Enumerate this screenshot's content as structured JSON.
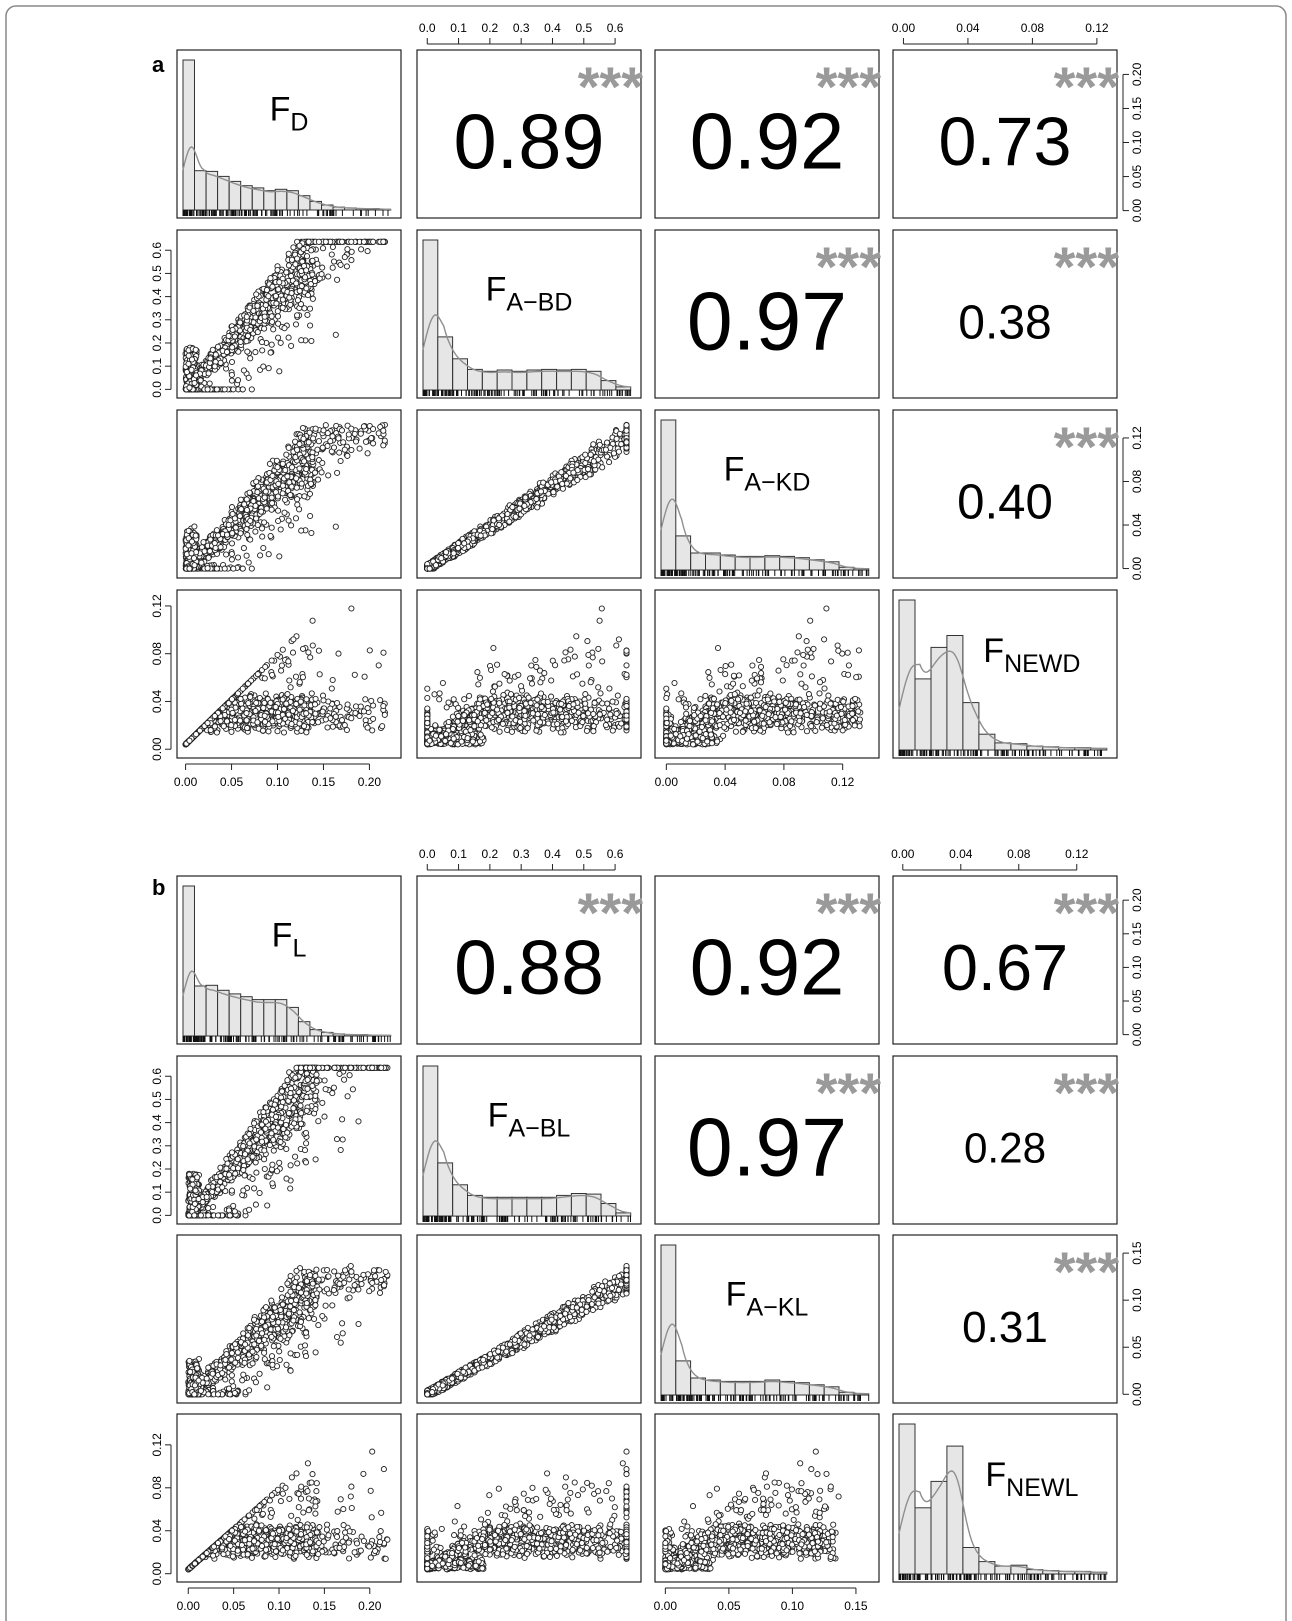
{
  "chart_data": [
    {
      "panel": "a",
      "type": "scatter",
      "variables": [
        {
          "main": "F",
          "sub": "D"
        },
        {
          "main": "F",
          "sub": "A−BD"
        },
        {
          "main": "F",
          "sub": "A−KD"
        },
        {
          "main": "F",
          "sub": "NEWD"
        }
      ],
      "ranges": [
        [
          -0.005,
          0.23
        ],
        [
          -0.02,
          0.67
        ],
        [
          -0.005,
          0.142
        ],
        [
          -0.004,
          0.13
        ]
      ],
      "ticks": [
        [
          "0.00",
          "0.05",
          "0.10",
          "0.15",
          "0.20"
        ],
        [
          "0.0",
          "0.1",
          "0.2",
          "0.3",
          "0.4",
          "0.5",
          "0.6"
        ],
        [
          "0.00",
          "0.04",
          "0.08",
          "0.12"
        ],
        [
          "0.00",
          "0.04",
          "0.08",
          "0.12"
        ]
      ],
      "correlations": [
        {
          "row": 0,
          "col": 1,
          "value": "0.89",
          "stars": "***"
        },
        {
          "row": 0,
          "col": 2,
          "value": "0.92",
          "stars": "***"
        },
        {
          "row": 0,
          "col": 3,
          "value": "0.73",
          "stars": "***"
        },
        {
          "row": 1,
          "col": 2,
          "value": "0.97",
          "stars": "***"
        },
        {
          "row": 1,
          "col": 3,
          "value": "0.38",
          "stars": "***"
        },
        {
          "row": 2,
          "col": 3,
          "value": "0.40",
          "stars": "***"
        }
      ],
      "histograms": [
        [
          0.21,
          0.055,
          0.054,
          0.047,
          0.04,
          0.034,
          0.031,
          0.027,
          0.029,
          0.027,
          0.02,
          0.012,
          0.007,
          0.004,
          0.003,
          0.002,
          0.002,
          0.001
        ],
        [
          0.24,
          0.085,
          0.05,
          0.033,
          0.03,
          0.032,
          0.03,
          0.032,
          0.033,
          0.032,
          0.033,
          0.03,
          0.015,
          0.005
        ],
        [
          0.22,
          0.05,
          0.025,
          0.025,
          0.022,
          0.02,
          0.02,
          0.021,
          0.02,
          0.018,
          0.015,
          0.012,
          0.004,
          0.002
        ],
        [
          0.19,
          0.09,
          0.13,
          0.145,
          0.06,
          0.02,
          0.009,
          0.008,
          0.005,
          0.004,
          0.003,
          0.003,
          0.002
        ]
      ]
    },
    {
      "panel": "b",
      "type": "scatter",
      "variables": [
        {
          "main": "F",
          "sub": "L"
        },
        {
          "main": "F",
          "sub": "A−BL"
        },
        {
          "main": "F",
          "sub": "A−KL"
        },
        {
          "main": "F",
          "sub": "NEWL"
        }
      ],
      "ranges": [
        [
          -0.008,
          0.23
        ],
        [
          -0.02,
          0.67
        ],
        [
          -0.005,
          0.165
        ],
        [
          -0.004,
          0.145
        ]
      ],
      "ticks": [
        [
          "0.00",
          "0.05",
          "0.10",
          "0.15",
          "0.20"
        ],
        [
          "0.0",
          "0.1",
          "0.2",
          "0.3",
          "0.4",
          "0.5",
          "0.6"
        ],
        [
          "0.00",
          "0.05",
          "0.10",
          "0.15"
        ],
        [
          "0.00",
          "0.04",
          "0.08",
          "0.12"
        ]
      ],
      "correlations": [
        {
          "row": 0,
          "col": 1,
          "value": "0.88",
          "stars": "***"
        },
        {
          "row": 0,
          "col": 2,
          "value": "0.92",
          "stars": "***"
        },
        {
          "row": 0,
          "col": 3,
          "value": "0.67",
          "stars": "***"
        },
        {
          "row": 1,
          "col": 2,
          "value": "0.97",
          "stars": "***"
        },
        {
          "row": 1,
          "col": 3,
          "value": "0.28",
          "stars": "***"
        },
        {
          "row": 2,
          "col": 3,
          "value": "0.31",
          "stars": "***"
        }
      ],
      "histograms": [
        [
          0.21,
          0.07,
          0.071,
          0.064,
          0.059,
          0.055,
          0.051,
          0.051,
          0.051,
          0.04,
          0.02,
          0.009,
          0.005,
          0.003,
          0.002,
          0.002,
          0.001,
          0.001
        ],
        [
          0.24,
          0.085,
          0.05,
          0.033,
          0.03,
          0.03,
          0.03,
          0.03,
          0.03,
          0.033,
          0.036,
          0.035,
          0.02,
          0.005
        ],
        [
          0.22,
          0.05,
          0.025,
          0.022,
          0.02,
          0.02,
          0.02,
          0.022,
          0.02,
          0.018,
          0.015,
          0.012,
          0.004,
          0.002
        ],
        [
          0.17,
          0.075,
          0.105,
          0.145,
          0.03,
          0.014,
          0.009,
          0.01,
          0.005,
          0.004,
          0.003,
          0.003,
          0.002
        ]
      ]
    }
  ]
}
